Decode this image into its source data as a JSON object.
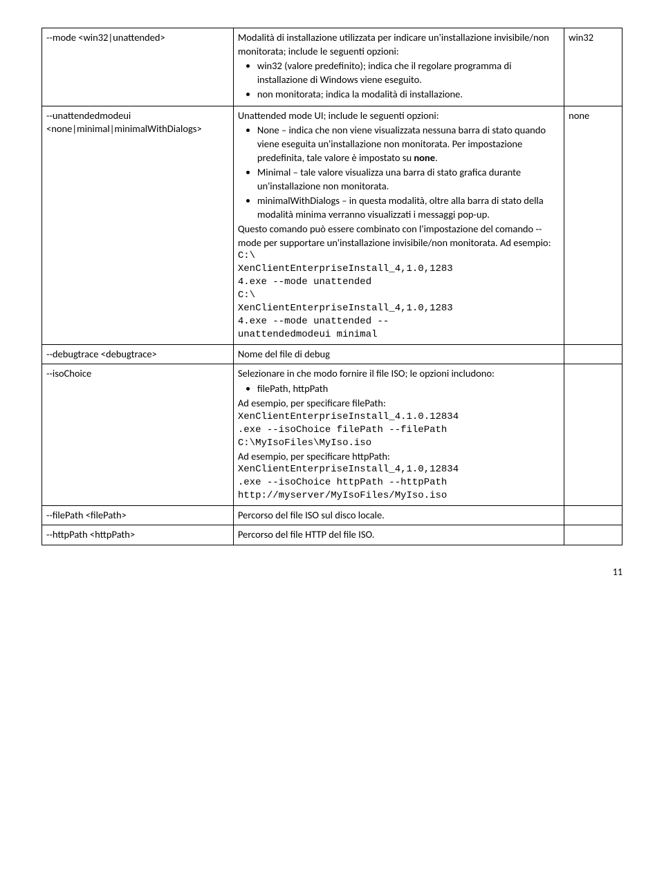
{
  "rows": [
    {
      "opt": "--mode <win32|unattended>",
      "def": "win32",
      "desc_intro": "Modalità di installazione utilizzata per indicare un'installazione invisibile/non monitorata; include le seguenti opzioni:",
      "bullets": [
        "win32 (valore predefinito); indica che il regolare programma di installazione di Windows viene eseguito.",
        "non monitorata; indica la modalità di installazione."
      ]
    },
    {
      "opt": "--unattendedmodeui <none|minimal|minimalWithDialogs>",
      "def": "none",
      "desc_intro": "Unattended mode UI; include le seguenti opzioni:",
      "bullets": [
        {
          "pre": "None – indica che non viene visualizzata nessuna barra di stato quando viene eseguita un'installazione non monitorata. Per impostazione predefinita, tale valore è impostato su ",
          "bold": "none",
          "post": "."
        },
        "Minimal – tale valore visualizza una barra di stato grafica durante un'installazione non monitorata.",
        "minimalWithDialogs – in questa modalità, oltre alla barra di stato della modalità minima verranno visualizzati i messaggi pop-up."
      ],
      "after": "Questo comando può essere combinato con l'impostazione del comando --mode per supportare un'installazione invisibile/non monitorata. Ad esempio:",
      "code": [
        "C:\\",
        "XenClientEnterpriseInstall_4,1.0,1283",
        "4.exe --mode unattended",
        "C:\\",
        "XenClientEnterpriseInstall_4,1.0,1283",
        "4.exe --mode unattended --",
        "unattendedmodeui minimal"
      ]
    },
    {
      "opt": "--debugtrace <debugtrace>",
      "def": "",
      "desc_plain": "Nome del file di debug"
    },
    {
      "opt": "--isoChoice",
      "def": "",
      "desc_intro": "Selezionare in che modo fornire il file ISO; le opzioni includono:",
      "bullets": [
        "filePath, httpPath"
      ],
      "after": "Ad esempio, per specificare filePath:",
      "code": [
        "XenClientEnterpriseInstall_4.1.0.12834",
        ".exe --isoChoice filePath --filePath",
        "C:\\MyIsoFiles\\MyIso.iso"
      ],
      "after2": "Ad esempio, per specificare httpPath:",
      "code2": [
        "XenClientEnterpriseInstall_4,1.0,12834",
        ".exe --isoChoice httpPath --httpPath",
        "http://myserver/MyIsoFiles/MyIso.iso"
      ]
    },
    {
      "opt": "--filePath <filePath>",
      "def": "",
      "desc_plain": "Percorso del file ISO sul disco locale."
    },
    {
      "opt": "--httpPath <httpPath>",
      "def": "",
      "desc_plain": "Percorso del file HTTP del file ISO."
    }
  ],
  "pagenum": "11"
}
